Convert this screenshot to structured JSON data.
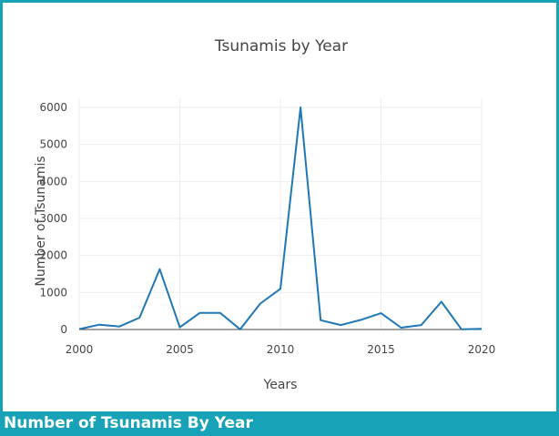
{
  "footer": {
    "title": "Number of Tsunamis By Year"
  },
  "colors": {
    "frame": "#17a2b8",
    "line": "#1f77b4",
    "grid": "#eeeeee",
    "text": "#444444"
  },
  "chart_data": {
    "type": "line",
    "title": "Tsunamis by Year",
    "xlabel": "Years",
    "ylabel": "Number of Tsunamis",
    "xlim": [
      2000,
      2020
    ],
    "ylim": [
      0,
      6000
    ],
    "grid": true,
    "xticks": [
      2000,
      2005,
      2010,
      2015,
      2020
    ],
    "yticks": [
      0,
      1000,
      2000,
      3000,
      4000,
      5000,
      6000
    ],
    "x": [
      2000,
      2001,
      2002,
      2003,
      2004,
      2005,
      2006,
      2007,
      2008,
      2009,
      2010,
      2011,
      2012,
      2013,
      2014,
      2015,
      2016,
      2017,
      2018,
      2019,
      2020
    ],
    "series": [
      {
        "values": [
          10,
          130,
          80,
          320,
          1630,
          60,
          450,
          450,
          5,
          700,
          1100,
          6000,
          250,
          120,
          260,
          440,
          50,
          120,
          750,
          5,
          20
        ]
      }
    ]
  }
}
